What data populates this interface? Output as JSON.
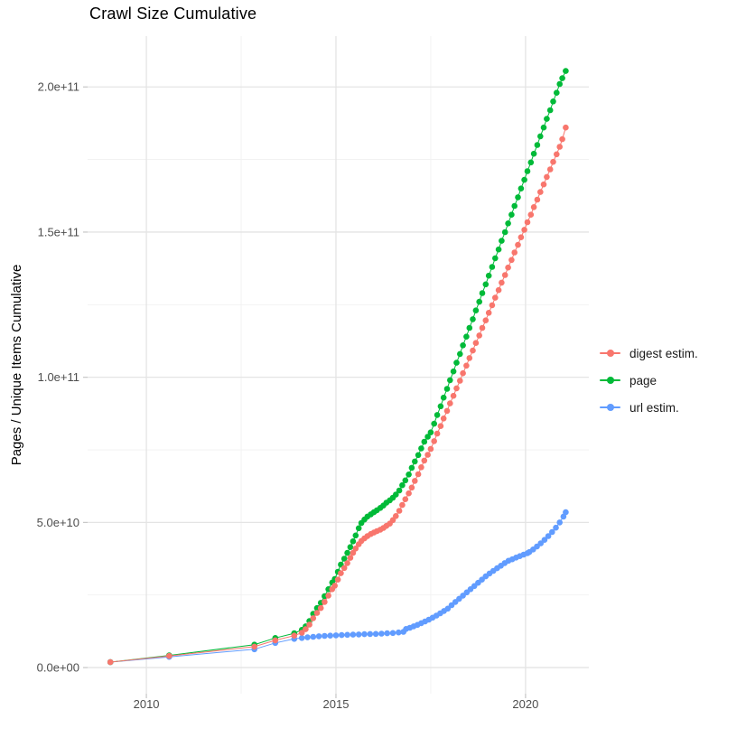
{
  "title": "Crawl Size Cumulative",
  "y_axis_title": "Pages / Unique Items Cumulative",
  "axes": {
    "x_tick_labels": [
      "2010",
      "2015",
      "2020"
    ],
    "y_tick_labels": [
      "0.0e+00",
      "5.0e+10",
      "1.0e+11",
      "1.5e+11",
      "2.0e+11"
    ]
  },
  "colors": {
    "digest_estim": "#F8766D",
    "page": "#00BA38",
    "url_estim": "#619CFF",
    "grid_major": "#e4e4e4",
    "grid_minor": "#f1f1f1",
    "tick_mark": "#c6c6c6",
    "axis_text": "#4d4d4d",
    "title_text": "#000000"
  },
  "legend": {
    "position": "right",
    "items": [
      "digest estim.",
      "page",
      "url estim."
    ]
  },
  "chart_data": {
    "type": "scatter",
    "title": "Crawl Size Cumulative",
    "xlabel": "",
    "ylabel": "Pages / Unique Items Cumulative",
    "legend_position": "right",
    "grid": true,
    "x_unit": "year (decimal)",
    "y_value_scale": 1000000000,
    "y_values_unit": "billions of pages / unique items",
    "xlim": [
      2008.45,
      2021.67
    ],
    "ylim_e9": [
      -9,
      217.5
    ],
    "x_major_ticks": [
      2010,
      2015,
      2020
    ],
    "x_minor_gridlines": [
      2012.5,
      2017.5
    ],
    "y_major_ticks_e9": [
      0,
      50,
      100,
      150,
      200
    ],
    "y_major_tick_labels": [
      "0.0e+00",
      "5.0e+10",
      "1.0e+11",
      "1.5e+11",
      "2.0e+11"
    ],
    "y_minor_gridlines_e9": [
      25,
      75,
      125,
      175
    ],
    "series": [
      {
        "name": "digest estim.",
        "color": "#F8766D",
        "points_e9": [
          [
            2009.05,
            1.9
          ],
          [
            2010.6,
            4.0
          ],
          [
            2012.85,
            7.2
          ],
          [
            2013.4,
            9.4
          ],
          [
            2013.9,
            11.0
          ],
          [
            2014.1,
            12.0
          ],
          [
            2014.2,
            13.2
          ],
          [
            2014.3,
            14.8
          ],
          [
            2014.4,
            17.0
          ],
          [
            2014.5,
            18.8
          ],
          [
            2014.6,
            20.5
          ],
          [
            2014.7,
            22.6
          ],
          [
            2014.8,
            24.8
          ],
          [
            2014.9,
            27.0
          ],
          [
            2014.97,
            28.2
          ],
          [
            2015.05,
            30.3
          ],
          [
            2015.13,
            32.5
          ],
          [
            2015.22,
            34.3
          ],
          [
            2015.3,
            36.0
          ],
          [
            2015.38,
            37.8
          ],
          [
            2015.45,
            39.5
          ],
          [
            2015.52,
            41.0
          ],
          [
            2015.6,
            42.5
          ],
          [
            2015.67,
            43.6
          ],
          [
            2015.75,
            44.5
          ],
          [
            2015.83,
            45.3
          ],
          [
            2015.92,
            46.0
          ],
          [
            2016.0,
            46.5
          ],
          [
            2016.08,
            47.0
          ],
          [
            2016.17,
            47.5
          ],
          [
            2016.25,
            48.1
          ],
          [
            2016.33,
            48.8
          ],
          [
            2016.42,
            49.6
          ],
          [
            2016.5,
            50.8
          ],
          [
            2016.58,
            52.2
          ],
          [
            2016.67,
            54.0
          ],
          [
            2016.75,
            56.0
          ],
          [
            2016.83,
            58.0
          ],
          [
            2016.92,
            60.0
          ],
          [
            2017.0,
            62.0
          ],
          [
            2017.08,
            64.3
          ],
          [
            2017.17,
            66.6
          ],
          [
            2017.25,
            69.0
          ],
          [
            2017.33,
            71.3
          ],
          [
            2017.42,
            73.3
          ],
          [
            2017.5,
            75.3
          ],
          [
            2017.59,
            78.0
          ],
          [
            2017.67,
            80.6
          ],
          [
            2017.76,
            83.2
          ],
          [
            2017.84,
            85.8
          ],
          [
            2017.93,
            88.4
          ],
          [
            2018.01,
            91.0
          ],
          [
            2018.1,
            93.6
          ],
          [
            2018.18,
            96.2
          ],
          [
            2018.27,
            98.8
          ],
          [
            2018.35,
            101.4
          ],
          [
            2018.44,
            104.0
          ],
          [
            2018.52,
            106.6
          ],
          [
            2018.61,
            109.2
          ],
          [
            2018.69,
            111.8
          ],
          [
            2018.78,
            114.4
          ],
          [
            2018.86,
            117.0
          ],
          [
            2018.95,
            119.6
          ],
          [
            2019.03,
            122.2
          ],
          [
            2019.12,
            124.8
          ],
          [
            2019.2,
            127.4
          ],
          [
            2019.29,
            130.0
          ],
          [
            2019.37,
            132.6
          ],
          [
            2019.46,
            135.2
          ],
          [
            2019.54,
            137.8
          ],
          [
            2019.63,
            140.4
          ],
          [
            2019.71,
            143.0
          ],
          [
            2019.8,
            145.6
          ],
          [
            2019.88,
            148.2
          ],
          [
            2019.97,
            150.8
          ],
          [
            2020.05,
            153.4
          ],
          [
            2020.14,
            156.0
          ],
          [
            2020.22,
            158.6
          ],
          [
            2020.31,
            161.2
          ],
          [
            2020.39,
            163.8
          ],
          [
            2020.48,
            166.4
          ],
          [
            2020.56,
            169.0
          ],
          [
            2020.65,
            171.6
          ],
          [
            2020.73,
            174.2
          ],
          [
            2020.82,
            176.8
          ],
          [
            2020.9,
            179.4
          ],
          [
            2020.97,
            182.0
          ],
          [
            2021.06,
            186.0
          ]
        ]
      },
      {
        "name": "page",
        "color": "#00BA38",
        "points_e9": [
          [
            2009.05,
            1.9
          ],
          [
            2010.6,
            4.2
          ],
          [
            2012.85,
            7.9
          ],
          [
            2013.4,
            10.2
          ],
          [
            2013.9,
            11.8
          ],
          [
            2014.1,
            13.0
          ],
          [
            2014.2,
            14.2
          ],
          [
            2014.3,
            16.0
          ],
          [
            2014.4,
            18.5
          ],
          [
            2014.5,
            20.5
          ],
          [
            2014.6,
            22.3
          ],
          [
            2014.7,
            24.6
          ],
          [
            2014.8,
            27.0
          ],
          [
            2014.9,
            29.3
          ],
          [
            2014.97,
            30.5
          ],
          [
            2015.05,
            33.0
          ],
          [
            2015.13,
            35.5
          ],
          [
            2015.22,
            37.5
          ],
          [
            2015.3,
            39.5
          ],
          [
            2015.38,
            41.5
          ],
          [
            2015.45,
            43.5
          ],
          [
            2015.52,
            45.5
          ],
          [
            2015.6,
            48.0
          ],
          [
            2015.67,
            49.8
          ],
          [
            2015.75,
            51.0
          ],
          [
            2015.83,
            52.0
          ],
          [
            2015.92,
            52.8
          ],
          [
            2016.0,
            53.5
          ],
          [
            2016.08,
            54.2
          ],
          [
            2016.17,
            55.0
          ],
          [
            2016.25,
            55.8
          ],
          [
            2016.33,
            56.8
          ],
          [
            2016.42,
            57.6
          ],
          [
            2016.5,
            58.5
          ],
          [
            2016.58,
            59.6
          ],
          [
            2016.67,
            61.0
          ],
          [
            2016.75,
            62.8
          ],
          [
            2016.83,
            64.5
          ],
          [
            2016.92,
            66.5
          ],
          [
            2017.0,
            68.8
          ],
          [
            2017.08,
            71.0
          ],
          [
            2017.17,
            73.2
          ],
          [
            2017.25,
            75.5
          ],
          [
            2017.33,
            77.8
          ],
          [
            2017.42,
            79.5
          ],
          [
            2017.5,
            81.0
          ],
          [
            2017.59,
            84.0
          ],
          [
            2017.67,
            87.0
          ],
          [
            2017.76,
            90.0
          ],
          [
            2017.84,
            93.0
          ],
          [
            2017.93,
            96.0
          ],
          [
            2018.01,
            99.0
          ],
          [
            2018.1,
            102.0
          ],
          [
            2018.18,
            105.0
          ],
          [
            2018.27,
            108.0
          ],
          [
            2018.35,
            111.0
          ],
          [
            2018.44,
            114.0
          ],
          [
            2018.52,
            117.0
          ],
          [
            2018.61,
            120.0
          ],
          [
            2018.69,
            123.0
          ],
          [
            2018.78,
            126.0
          ],
          [
            2018.86,
            129.0
          ],
          [
            2018.95,
            132.0
          ],
          [
            2019.03,
            135.0
          ],
          [
            2019.12,
            138.0
          ],
          [
            2019.2,
            141.0
          ],
          [
            2019.29,
            144.0
          ],
          [
            2019.37,
            147.0
          ],
          [
            2019.46,
            150.0
          ],
          [
            2019.54,
            153.0
          ],
          [
            2019.63,
            156.0
          ],
          [
            2019.71,
            159.0
          ],
          [
            2019.8,
            162.0
          ],
          [
            2019.88,
            165.0
          ],
          [
            2019.97,
            168.0
          ],
          [
            2020.05,
            171.0
          ],
          [
            2020.14,
            174.0
          ],
          [
            2020.22,
            177.0
          ],
          [
            2020.31,
            180.0
          ],
          [
            2020.39,
            183.0
          ],
          [
            2020.48,
            186.0
          ],
          [
            2020.56,
            189.0
          ],
          [
            2020.65,
            192.0
          ],
          [
            2020.73,
            195.0
          ],
          [
            2020.82,
            198.0
          ],
          [
            2020.9,
            201.0
          ],
          [
            2020.97,
            203.0
          ],
          [
            2021.06,
            205.5
          ]
        ]
      },
      {
        "name": "url estim.",
        "color": "#619CFF",
        "points_e9": [
          [
            2009.05,
            1.9
          ],
          [
            2010.6,
            3.7
          ],
          [
            2012.85,
            6.3
          ],
          [
            2013.4,
            8.5
          ],
          [
            2013.9,
            9.9
          ],
          [
            2014.1,
            10.2
          ],
          [
            2014.25,
            10.4
          ],
          [
            2014.4,
            10.6
          ],
          [
            2014.55,
            10.8
          ],
          [
            2014.7,
            10.9
          ],
          [
            2014.85,
            11.0
          ],
          [
            2015.0,
            11.1
          ],
          [
            2015.15,
            11.2
          ],
          [
            2015.3,
            11.3
          ],
          [
            2015.45,
            11.35
          ],
          [
            2015.6,
            11.4
          ],
          [
            2015.75,
            11.5
          ],
          [
            2015.9,
            11.55
          ],
          [
            2016.05,
            11.6
          ],
          [
            2016.2,
            11.7
          ],
          [
            2016.35,
            11.8
          ],
          [
            2016.5,
            11.9
          ],
          [
            2016.65,
            12.1
          ],
          [
            2016.78,
            12.3
          ],
          [
            2016.85,
            13.3
          ],
          [
            2016.95,
            13.7
          ],
          [
            2017.05,
            14.2
          ],
          [
            2017.15,
            14.7
          ],
          [
            2017.25,
            15.3
          ],
          [
            2017.35,
            15.9
          ],
          [
            2017.45,
            16.5
          ],
          [
            2017.55,
            17.2
          ],
          [
            2017.65,
            17.9
          ],
          [
            2017.75,
            18.7
          ],
          [
            2017.85,
            19.5
          ],
          [
            2017.95,
            20.3
          ],
          [
            2018.05,
            21.5
          ],
          [
            2018.15,
            22.6
          ],
          [
            2018.25,
            23.7
          ],
          [
            2018.35,
            24.8
          ],
          [
            2018.45,
            25.9
          ],
          [
            2018.55,
            27.0
          ],
          [
            2018.65,
            28.1
          ],
          [
            2018.75,
            29.2
          ],
          [
            2018.85,
            30.3
          ],
          [
            2018.95,
            31.4
          ],
          [
            2019.05,
            32.4
          ],
          [
            2019.15,
            33.3
          ],
          [
            2019.25,
            34.2
          ],
          [
            2019.35,
            35.1
          ],
          [
            2019.45,
            36.0
          ],
          [
            2019.55,
            36.8
          ],
          [
            2019.65,
            37.3
          ],
          [
            2019.75,
            37.9
          ],
          [
            2019.85,
            38.4
          ],
          [
            2019.95,
            38.9
          ],
          [
            2020.05,
            39.4
          ],
          [
            2020.1,
            39.8
          ],
          [
            2020.2,
            40.7
          ],
          [
            2020.3,
            41.7
          ],
          [
            2020.4,
            42.8
          ],
          [
            2020.5,
            44.0
          ],
          [
            2020.6,
            45.3
          ],
          [
            2020.7,
            46.7
          ],
          [
            2020.8,
            48.2
          ],
          [
            2020.9,
            50.0
          ],
          [
            2021.0,
            52.0
          ],
          [
            2021.06,
            53.5
          ]
        ]
      }
    ]
  }
}
